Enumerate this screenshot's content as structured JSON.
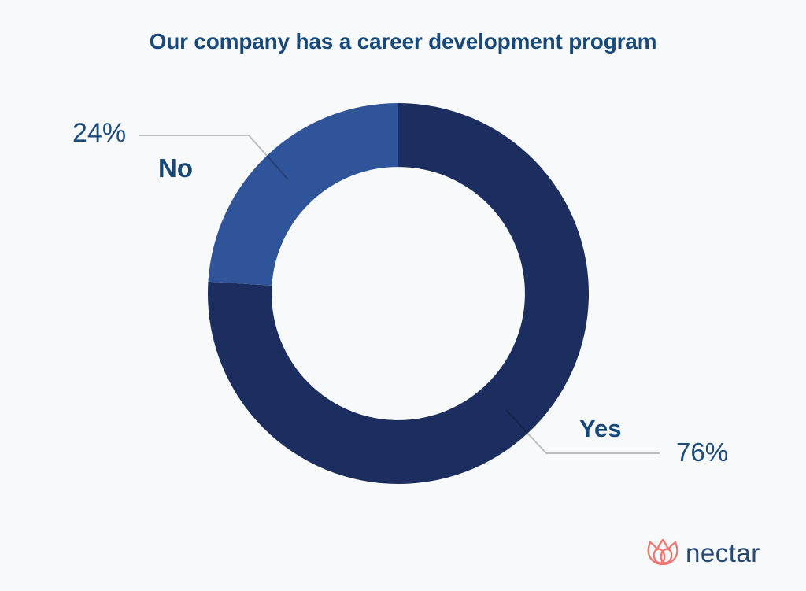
{
  "page": {
    "background": "#f8f9fb"
  },
  "chart_data": {
    "type": "pie",
    "style": "donut",
    "title": "Our company has a career development program",
    "title_color": "#17497c",
    "categories": [
      "Yes",
      "No"
    ],
    "values": [
      76,
      24
    ],
    "unit": "%",
    "slices": [
      {
        "label": "Yes",
        "value": 76,
        "value_label": "76%",
        "color": "#1b2e5f"
      },
      {
        "label": "No",
        "value": 24,
        "value_label": "24%",
        "color": "#2f5499"
      }
    ],
    "start_angle_deg": 0,
    "direction": "clockwise",
    "hole_ratio": 0.665,
    "legend_position": "none",
    "labels_position": "outside-with-leader-lines",
    "label_value_color": "#1c4c7e",
    "label_category_color": "#16487a",
    "leader_line_color": "rgba(0,0,0,0.24)"
  },
  "branding": {
    "logo_text": "nectar",
    "logo_icon": "lotus-icon",
    "icon_color": "#f3746e",
    "text_color": "#274a73"
  }
}
